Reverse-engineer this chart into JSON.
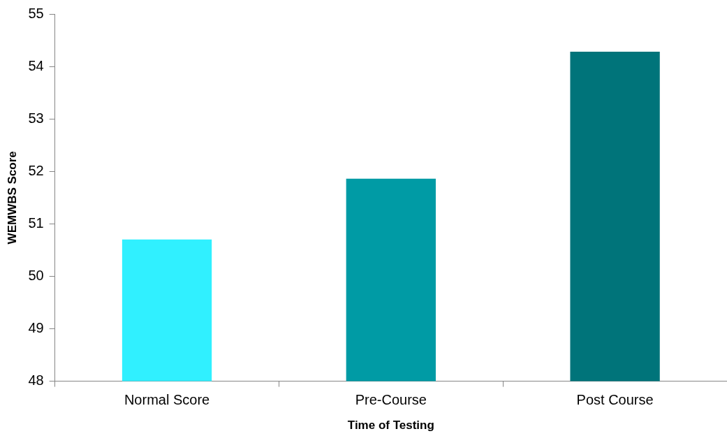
{
  "chart_data": {
    "type": "bar",
    "xlabel": "Time of Testing",
    "ylabel": "WEMWBS Score",
    "categories": [
      "Normal Score",
      "Pre-Course",
      "Post Course"
    ],
    "values": [
      50.7,
      51.86,
      54.28
    ],
    "colors": [
      "#30f0ff",
      "#009ba5",
      "#00747a"
    ],
    "ylim": [
      48,
      55
    ],
    "yticks": [
      48,
      49,
      50,
      51,
      52,
      53,
      54,
      55
    ],
    "grid": false,
    "legend": false
  }
}
